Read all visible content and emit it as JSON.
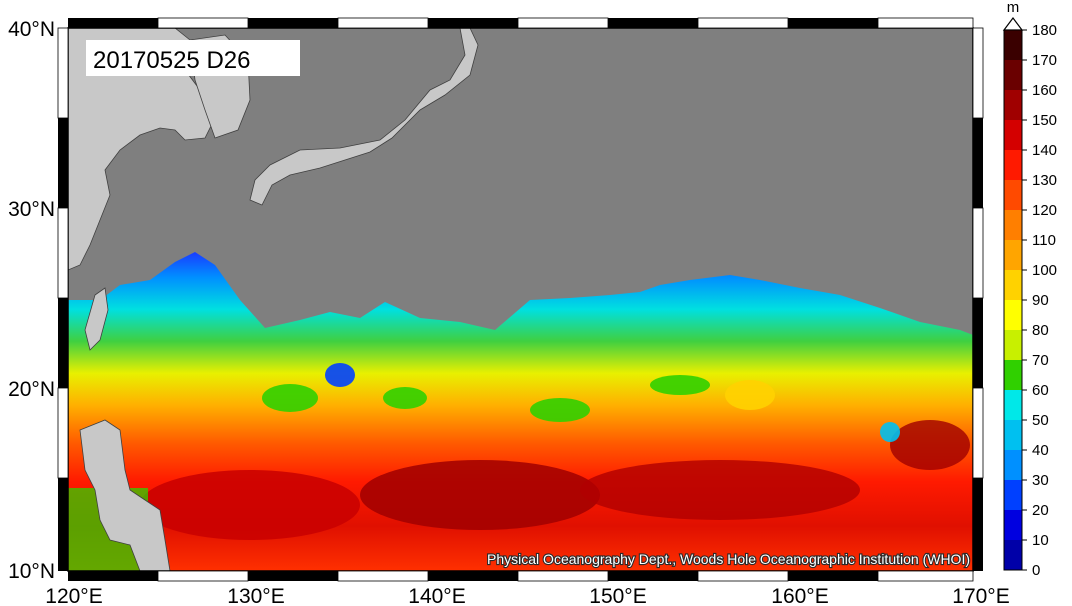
{
  "map": {
    "stamp": "20170525 D26",
    "credit": "Physical Oceanography Dept., Woods Hole Oceanographic Institution (WHOI)",
    "lon_labels": [
      "120°E",
      "130°E",
      "140°E",
      "150°E",
      "160°E",
      "170°E"
    ],
    "lat_labels": [
      "40°N",
      "30°N",
      "20°N",
      "10°N"
    ],
    "lon_range": [
      120,
      170
    ],
    "lat_range": [
      10,
      40
    ],
    "land_color": "#c8c8c8",
    "masked_color": "#7f7f7f"
  },
  "colorbar": {
    "unit": "m",
    "labels": [
      "180",
      "170",
      "160",
      "150",
      "140",
      "130",
      "120",
      "110",
      "100",
      "90",
      "80",
      "70",
      "60",
      "50",
      "40",
      "30",
      "20",
      "10",
      "0"
    ],
    "colors": [
      "#3a0000",
      "#6a0000",
      "#a00000",
      "#d40000",
      "#ff1a00",
      "#ff4a00",
      "#ff7f00",
      "#ffa500",
      "#ffd200",
      "#ffff00",
      "#c8f000",
      "#30d000",
      "#00e8e8",
      "#00c0f0",
      "#0090ff",
      "#0040ff",
      "#0000e0",
      "#0000a8",
      "#000070"
    ]
  }
}
